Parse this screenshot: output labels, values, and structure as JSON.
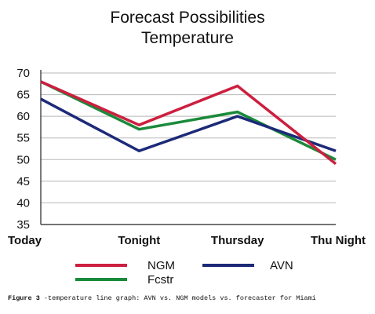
{
  "chart_data": {
    "type": "line",
    "title": [
      "Forecast Possibilities",
      "Temperature"
    ],
    "categories": [
      "Today",
      "Tonight",
      "Thursday",
      "Thu Night"
    ],
    "series": [
      {
        "name": "NGM",
        "values": [
          68,
          58,
          67,
          49
        ],
        "color": "#cc1f3f"
      },
      {
        "name": "AVN",
        "values": [
          64,
          52,
          60,
          52
        ],
        "color": "#1c2a78"
      },
      {
        "name": "Fcstr",
        "values": [
          68,
          57,
          61,
          50
        ],
        "color": "#1a8a3a"
      }
    ],
    "ylim": [
      35,
      70
    ],
    "yticks": [
      35,
      40,
      45,
      50,
      55,
      60,
      65,
      70
    ],
    "grid": true,
    "legend_position": "bottom"
  },
  "caption": {
    "label": "Figure 3",
    "text": " -temperature line graph: AVN vs. NGM models vs. forecaster for Miami"
  }
}
